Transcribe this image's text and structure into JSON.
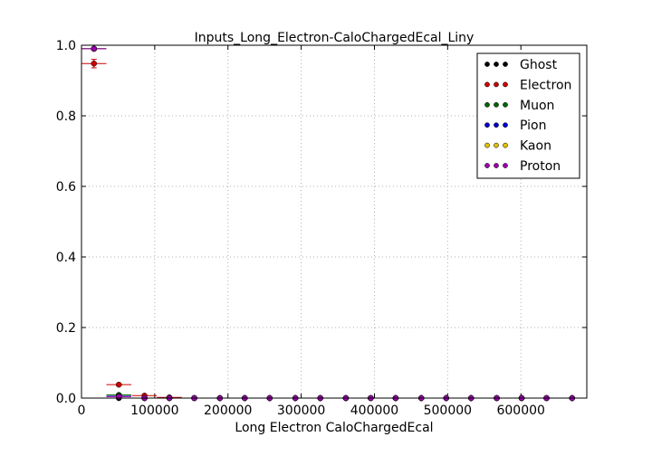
{
  "chart_data": {
    "type": "scatter",
    "title": "Inputs_Long_Electron-CaloChargedEcal_Liny",
    "xlabel": "Long Electron CaloChargedEcal",
    "ylabel": "",
    "xlim": [
      0,
      690000
    ],
    "ylim": [
      0.0,
      1.0
    ],
    "xticks": [
      0,
      100000,
      200000,
      300000,
      400000,
      500000,
      600000
    ],
    "xtick_labels": [
      "0",
      "100000",
      "200000",
      "300000",
      "400000",
      "500000",
      "600000"
    ],
    "yticks": [
      0.0,
      0.2,
      0.4,
      0.6,
      0.8,
      1.0
    ],
    "ytick_labels": [
      "0.0",
      "0.2",
      "0.4",
      "0.6",
      "0.8",
      "1.0"
    ],
    "grid": true,
    "legend_position": "top-right",
    "bin_half_width": 17000,
    "x": [
      17000,
      51000,
      86000,
      120000,
      154000,
      189000,
      223000,
      257000,
      292000,
      326000,
      361000,
      395000,
      429000,
      464000,
      498000,
      532000,
      567000,
      601000,
      635000,
      670000
    ],
    "series": [
      {
        "name": "Ghost",
        "color": "#000000",
        "values": [
          0.99,
          0.0,
          0.0,
          0.0,
          0.0,
          0.0,
          0.0,
          0.0,
          0.0,
          0.0,
          0.0,
          0.0,
          0.0,
          0.0,
          0.0,
          0.0,
          0.0,
          0.0,
          0.0,
          0.0
        ],
        "errors": [
          0.003,
          0,
          0,
          0,
          0,
          0,
          0,
          0,
          0,
          0,
          0,
          0,
          0,
          0,
          0,
          0,
          0,
          0,
          0,
          0
        ]
      },
      {
        "name": "Electron",
        "color": "#cc0000",
        "values": [
          0.948,
          0.038,
          0.007,
          0.002,
          0.0,
          0.0,
          0.0,
          0.0,
          0.0,
          0.0,
          0.0,
          0.0,
          0.0,
          0.0,
          0.0,
          0.0,
          0.0,
          0.0,
          0.0,
          0.0
        ],
        "errors": [
          0.012,
          0.003,
          0.002,
          0.001,
          0,
          0,
          0,
          0,
          0,
          0,
          0,
          0,
          0,
          0,
          0,
          0,
          0,
          0,
          0,
          0
        ]
      },
      {
        "name": "Muon",
        "color": "#006400",
        "values": [
          0.99,
          0.009,
          0.0,
          0.0,
          0.0,
          0.0,
          0.0,
          0.0,
          0.0,
          0.0,
          0.0,
          0.0,
          0.0,
          0.0,
          0.0,
          0.0,
          0.0,
          0.0,
          0.0,
          0.0
        ],
        "errors": [
          0.003,
          0.002,
          0,
          0,
          0,
          0,
          0,
          0,
          0,
          0,
          0,
          0,
          0,
          0,
          0,
          0,
          0,
          0,
          0,
          0
        ]
      },
      {
        "name": "Pion",
        "color": "#0000cc",
        "values": [
          0.99,
          0.005,
          0.0,
          0.0,
          0.0,
          0.0,
          0.0,
          0.0,
          0.0,
          0.0,
          0.0,
          0.0,
          0.0,
          0.0,
          0.0,
          0.0,
          0.0,
          0.0,
          0.0,
          0.0
        ],
        "errors": [
          0.002,
          0.001,
          0,
          0,
          0,
          0,
          0,
          0,
          0,
          0,
          0,
          0,
          0,
          0,
          0,
          0,
          0,
          0,
          0,
          0
        ]
      },
      {
        "name": "Kaon",
        "color": "#e0c000",
        "values": [
          0.99,
          0.004,
          0.0,
          0.0,
          0.0,
          0.0,
          0.0,
          0.0,
          0.0,
          0.0,
          0.0,
          0.0,
          0.0,
          0.0,
          0.0,
          0.0,
          0.0,
          0.0,
          0.0,
          0.0
        ],
        "errors": [
          0.002,
          0.001,
          0,
          0,
          0,
          0,
          0,
          0,
          0,
          0,
          0,
          0,
          0,
          0,
          0,
          0,
          0,
          0,
          0,
          0
        ]
      },
      {
        "name": "Proton",
        "color": "#9900aa",
        "values": [
          0.99,
          0.004,
          0.0,
          0.0,
          0.0,
          0.0,
          0.0,
          0.0,
          0.0,
          0.0,
          0.0,
          0.0,
          0.0,
          0.0,
          0.0,
          0.0,
          0.0,
          0.0,
          0.0,
          0.0
        ],
        "errors": [
          0.002,
          0.001,
          0,
          0,
          0,
          0,
          0,
          0,
          0,
          0,
          0,
          0,
          0,
          0,
          0,
          0,
          0,
          0,
          0,
          0
        ]
      }
    ]
  }
}
